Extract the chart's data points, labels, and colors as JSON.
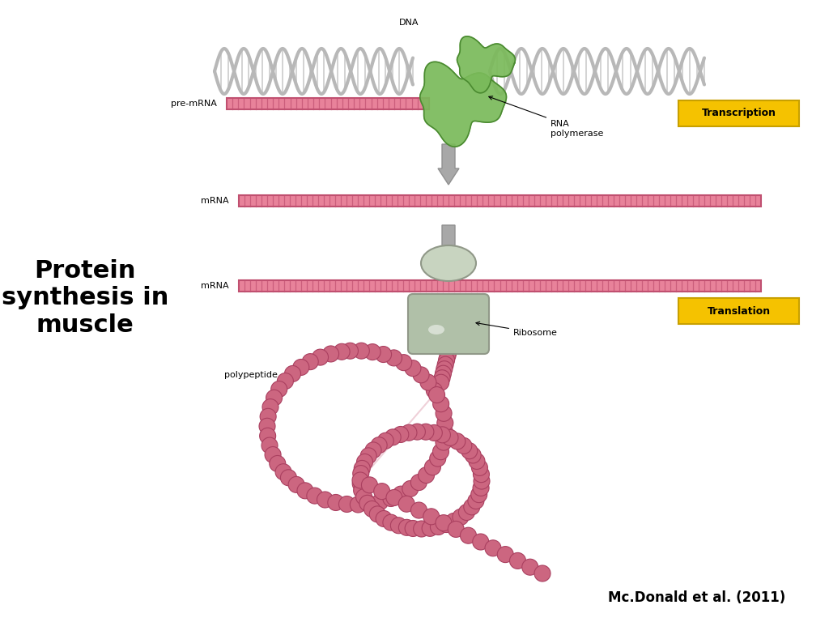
{
  "bg_color": "#ffffff",
  "title_text": "Protein\nsynthesis in\nmuscle",
  "title_fontsize": 22,
  "title_fontweight": "bold",
  "title_ha": "center",
  "title_color": "#000000",
  "citation_text": "Mc.Donald et al. (2011)",
  "citation_fontsize": 12,
  "citation_fontweight": "bold",
  "transcription_label": "Transcription",
  "transcription_bg": "#f5c200",
  "translation_label": "Translation",
  "translation_bg": "#f5c200",
  "dna_color_main": "#b8b8b8",
  "dna_color_dark": "#888888",
  "dna_rung_color": "#cccccc",
  "mrna_fill": "#e8829a",
  "mrna_edge": "#c05070",
  "mrna_stripe": "#c05070",
  "arrow_fc": "#a8a8a8",
  "arrow_ec": "#909090",
  "ribo_top_fc": "#c8d4c0",
  "ribo_top_ec": "#909888",
  "ribo_bot_fc": "#b0c0a8",
  "ribo_bot_ec": "#909888",
  "poly_color": "#cc6680",
  "poly_edge": "#aa4060",
  "green_blob": "#7aba5a",
  "green_blob_dark": "#4a8a30",
  "label_fontsize": 8,
  "tag_fontsize": 9
}
